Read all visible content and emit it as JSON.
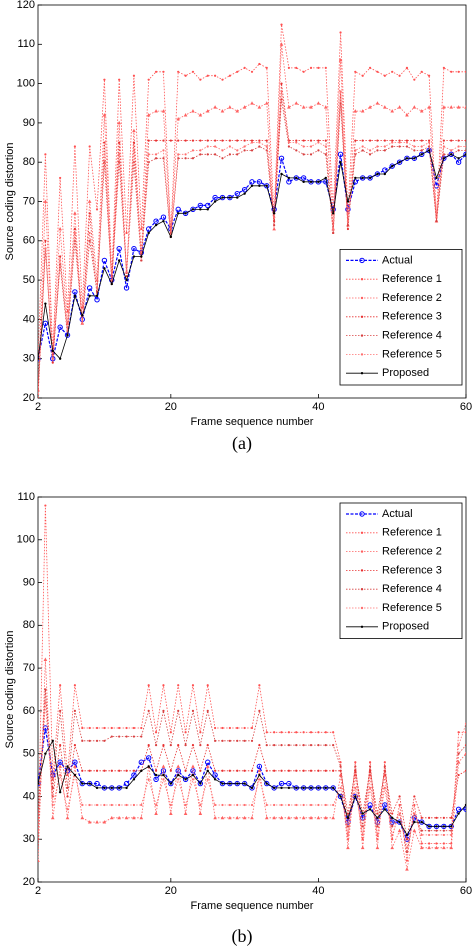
{
  "chart_data": [
    {
      "type": "line",
      "caption": "(a)",
      "xlabel": "Frame sequence number",
      "ylabel": "Source coding distortion",
      "xlim": [
        2,
        60
      ],
      "xticks": [
        2,
        20,
        40,
        60
      ],
      "ylim": [
        20,
        120
      ],
      "yticks": [
        20,
        30,
        40,
        50,
        60,
        70,
        80,
        90,
        100,
        110,
        120
      ],
      "legend": "lower right",
      "x": [
        2,
        3,
        4,
        5,
        6,
        7,
        8,
        9,
        10,
        11,
        12,
        13,
        14,
        15,
        16,
        17,
        18,
        19,
        20,
        21,
        22,
        23,
        24,
        25,
        26,
        27,
        28,
        29,
        30,
        31,
        32,
        33,
        34,
        35,
        36,
        37,
        38,
        39,
        40,
        41,
        42,
        43,
        44,
        45,
        46,
        47,
        48,
        49,
        50,
        51,
        52,
        53,
        54,
        55,
        56,
        57,
        58,
        59,
        60
      ],
      "series": [
        {
          "name": "Actual",
          "color": "#0000ff",
          "values": [
            30,
            39,
            30,
            38,
            36,
            47,
            40,
            48,
            45,
            55,
            50,
            58,
            48,
            58,
            57,
            63,
            65,
            66,
            63,
            68,
            67,
            68,
            69,
            69,
            71,
            71,
            71,
            72,
            73,
            75,
            75,
            74,
            68,
            81,
            75,
            76,
            76,
            75,
            75,
            75,
            68,
            82,
            68,
            75,
            76,
            76,
            77,
            78,
            79,
            80,
            81,
            81,
            82,
            83,
            74,
            81,
            82,
            80,
            82
          ]
        },
        {
          "name": "Reference 1",
          "color": "#ff5050",
          "values": [
            30,
            82,
            31,
            76,
            42,
            84,
            43,
            84,
            68,
            101,
            51,
            101,
            62,
            102,
            63,
            101,
            103,
            103,
            62,
            103,
            102,
            103,
            101,
            102,
            102,
            101,
            102,
            103,
            104,
            103,
            105,
            104,
            66,
            115,
            104,
            104,
            103,
            104,
            104,
            104,
            67,
            113,
            67,
            103,
            102,
            104,
            103,
            102,
            103,
            102,
            104,
            101,
            103,
            102,
            66,
            104,
            103,
            103,
            103
          ]
        },
        {
          "name": "Reference 2",
          "color": "#ff6060",
          "values": [
            22,
            70,
            32,
            63,
            39,
            67,
            39,
            70,
            50,
            92,
            50,
            90,
            52,
            88,
            57,
            92,
            93,
            93,
            62,
            91,
            92,
            93,
            92,
            93,
            94,
            93,
            94,
            93,
            94,
            95,
            94,
            95,
            63,
            110,
            94,
            95,
            94,
            94,
            95,
            94,
            63,
            106,
            64,
            93,
            93,
            94,
            95,
            94,
            93,
            94,
            92,
            94,
            93,
            94,
            65,
            94,
            94,
            94,
            94
          ]
        },
        {
          "name": "Reference 3",
          "color": "#e83030",
          "values": [
            22,
            60,
            29,
            56,
            37,
            63,
            39,
            67,
            46,
            85,
            49,
            85,
            51,
            85,
            55,
            85.5,
            85.5,
            85.5,
            85.5,
            85.5,
            85.5,
            85.5,
            85.5,
            85.5,
            85.5,
            85.5,
            85.5,
            85.5,
            85.5,
            85.5,
            85.5,
            85.5,
            65,
            100,
            85.5,
            85.5,
            85.5,
            85.5,
            85.5,
            85.5,
            62,
            98,
            63,
            85.5,
            85.5,
            85.5,
            85.5,
            85.5,
            85.5,
            85.5,
            85.5,
            85.5,
            85.5,
            85.5,
            65,
            85.5,
            85.5,
            85.5,
            85.5
          ]
        },
        {
          "name": "Reference 4",
          "color": "#d84040",
          "values": [
            20,
            58,
            30,
            54,
            36,
            60,
            39,
            60,
            47,
            80,
            50,
            80,
            52,
            80,
            55,
            80,
            81,
            81,
            61,
            81,
            81,
            81,
            82,
            82,
            82,
            81,
            82,
            82,
            83,
            83,
            84,
            83,
            64,
            96,
            84,
            83,
            82,
            82,
            83,
            82,
            62,
            95,
            64,
            82,
            83,
            82,
            83,
            83,
            84,
            84,
            84,
            83,
            83,
            84,
            65,
            82,
            82,
            83,
            83
          ]
        },
        {
          "name": "Reference 5",
          "color": "#ff7070",
          "values": [
            21,
            58,
            30,
            55,
            37,
            62,
            39,
            62,
            48,
            82,
            50,
            82,
            52,
            83,
            56,
            82,
            82,
            83,
            61,
            82,
            82,
            83,
            83,
            84,
            84,
            83,
            84,
            83,
            84,
            85,
            85,
            84,
            66,
            98,
            85,
            85,
            84,
            84,
            85,
            84,
            63,
            98,
            65,
            83,
            84,
            83,
            84,
            84,
            85,
            85,
            85,
            84,
            84,
            85,
            66,
            84,
            83,
            84,
            84
          ]
        },
        {
          "name": "Proposed",
          "color": "#000000",
          "values": [
            30,
            44,
            32,
            30,
            36,
            46,
            41,
            46,
            46,
            53,
            49,
            55,
            50,
            56,
            56,
            62,
            64,
            65,
            61,
            67,
            67,
            68,
            68,
            68,
            70,
            71,
            71,
            71,
            72,
            74,
            74,
            74,
            67,
            77,
            76,
            76,
            75,
            75,
            75,
            76,
            67,
            80,
            70,
            76,
            76,
            76,
            77,
            77,
            79,
            80,
            81,
            81,
            82,
            83,
            76,
            81,
            82,
            81,
            82
          ]
        }
      ]
    },
    {
      "type": "line",
      "caption": "(b)",
      "xlabel": "Frame sequence number",
      "ylabel": "Source coding distortion",
      "xlim": [
        2,
        60
      ],
      "xticks": [
        2,
        20,
        40,
        60
      ],
      "ylim": [
        20,
        110
      ],
      "yticks": [
        20,
        30,
        40,
        50,
        60,
        70,
        80,
        90,
        100,
        110
      ],
      "legend": "upper right",
      "x": [
        2,
        3,
        4,
        5,
        6,
        7,
        8,
        9,
        10,
        11,
        12,
        13,
        14,
        15,
        16,
        17,
        18,
        19,
        20,
        21,
        22,
        23,
        24,
        25,
        26,
        27,
        28,
        29,
        30,
        31,
        32,
        33,
        34,
        35,
        36,
        37,
        38,
        39,
        40,
        41,
        42,
        43,
        44,
        45,
        46,
        47,
        48,
        49,
        50,
        51,
        52,
        53,
        54,
        55,
        56,
        57,
        58,
        59,
        60
      ],
      "series": [
        {
          "name": "Actual",
          "color": "#0000ff",
          "values": [
            43,
            56,
            45,
            48,
            46,
            48,
            43,
            43,
            43,
            42,
            42,
            42,
            43,
            45,
            48,
            49,
            44,
            46,
            43,
            46,
            44,
            46,
            43,
            48,
            45,
            43,
            43,
            43,
            43,
            42,
            47,
            43,
            42,
            43,
            43,
            42,
            42,
            42,
            42,
            42,
            42,
            40,
            34,
            40,
            35,
            38,
            34,
            38,
            34,
            34,
            30,
            35,
            34,
            33,
            33,
            33,
            33,
            37,
            37
          ]
        },
        {
          "name": "Reference 1",
          "color": "#ff5050",
          "values": [
            30,
            108,
            44,
            66,
            45,
            66,
            56,
            56,
            56,
            56,
            56,
            56,
            56,
            56,
            56,
            66,
            55,
            66,
            55,
            66,
            55,
            66,
            55,
            66,
            56,
            56,
            56,
            56,
            56,
            56,
            66,
            55,
            55,
            55,
            55,
            55,
            55,
            55,
            55,
            55,
            55,
            48,
            30,
            48,
            30,
            48,
            30,
            48,
            30,
            38,
            25,
            38,
            29,
            29,
            29,
            29,
            29,
            55,
            55
          ]
        },
        {
          "name": "Reference 2",
          "color": "#ff6060",
          "values": [
            25,
            72,
            35,
            47,
            35,
            47,
            35,
            34,
            34,
            34,
            35,
            35,
            35,
            35,
            35,
            47,
            36,
            47,
            36,
            47,
            36,
            47,
            36,
            47,
            35,
            35,
            35,
            35,
            35,
            35,
            46,
            35,
            35,
            35,
            35,
            35,
            35,
            35,
            35,
            35,
            35,
            45,
            28,
            45,
            28,
            45,
            28,
            45,
            28,
            32,
            23,
            32,
            28,
            28,
            28,
            28,
            28,
            48,
            50
          ]
        },
        {
          "name": "Reference 3",
          "color": "#e83030",
          "values": [
            35,
            65,
            40,
            52,
            40,
            52,
            46,
            46,
            46,
            46,
            46,
            46,
            46,
            46,
            46,
            52,
            46,
            52,
            46,
            52,
            46,
            52,
            46,
            52,
            46,
            46,
            46,
            46,
            46,
            46,
            52,
            46,
            46,
            46,
            46,
            46,
            46,
            46,
            46,
            46,
            46,
            46,
            36,
            46,
            36,
            46,
            36,
            46,
            36,
            40,
            30,
            40,
            35,
            35,
            35,
            35,
            35,
            45,
            46
          ]
        },
        {
          "name": "Reference 4",
          "color": "#d84040",
          "values": [
            30,
            65,
            42,
            60,
            42,
            60,
            53,
            53,
            53,
            53,
            54,
            54,
            54,
            54,
            54,
            60,
            52,
            60,
            52,
            60,
            52,
            60,
            52,
            60,
            53,
            53,
            53,
            53,
            53,
            53,
            60,
            52,
            52,
            52,
            52,
            52,
            52,
            52,
            52,
            52,
            52,
            47,
            33,
            47,
            33,
            47,
            33,
            47,
            33,
            36,
            27,
            36,
            32,
            32,
            32,
            32,
            32,
            50,
            52
          ]
        },
        {
          "name": "Reference 5",
          "color": "#ff7070",
          "values": [
            32,
            62,
            38,
            45,
            37,
            45,
            38,
            38,
            38,
            38,
            38,
            38,
            38,
            38,
            38,
            44,
            38,
            44,
            38,
            44,
            38,
            44,
            38,
            44,
            38,
            38,
            38,
            38,
            38,
            38,
            44,
            38,
            38,
            38,
            38,
            38,
            38,
            38,
            38,
            38,
            38,
            42,
            31,
            42,
            31,
            42,
            31,
            42,
            31,
            36,
            28,
            36,
            31,
            31,
            31,
            31,
            31,
            52,
            57
          ]
        },
        {
          "name": "Proposed",
          "color": "#000000",
          "values": [
            43,
            50,
            53,
            41,
            47,
            45,
            43,
            43,
            42,
            42,
            42,
            42,
            42,
            44,
            46,
            47,
            45,
            45,
            43,
            45,
            44,
            45,
            43,
            46,
            44,
            43,
            43,
            43,
            43,
            42,
            45,
            43,
            42,
            42,
            42,
            42,
            42,
            42,
            42,
            42,
            42,
            40,
            35,
            40,
            36,
            37,
            35,
            37,
            35,
            34,
            31,
            34,
            34,
            33,
            33,
            33,
            33,
            36,
            38
          ]
        }
      ]
    }
  ]
}
